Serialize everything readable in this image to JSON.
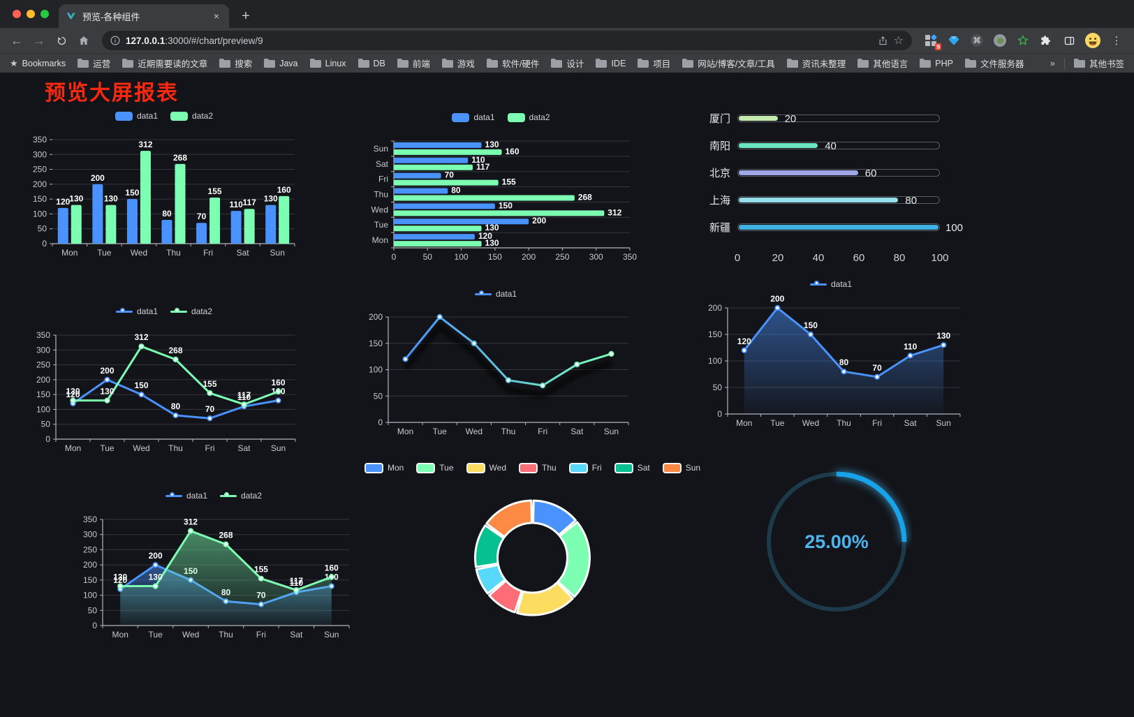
{
  "browser": {
    "tab_title": "预览-各种组件",
    "tab_close": "×",
    "new_tab": "+",
    "url_host": "127.0.0.1",
    "url_rest": ":3000/#/chart/preview/9",
    "bookmarks_label": "Bookmarks",
    "bookmark_folders": [
      "运营",
      "近期需要读的文章",
      "搜索",
      "Java",
      "Linux",
      "DB",
      "前端",
      "游戏",
      "软件/硬件",
      "设计",
      "IDE",
      "项目",
      "网站/博客/文章/工具",
      "资讯未整理",
      "其他语言",
      "PHP",
      "文件服务器"
    ],
    "bookmarks_overflow": "»",
    "other_bookmarks": "其他书签",
    "extension_badge": "9"
  },
  "page": {
    "title": "预览大屏报表"
  },
  "chart_data": [
    {
      "slot": "c1",
      "type": "bar",
      "orient": "vertical",
      "legend": true,
      "categories": [
        "Mon",
        "Tue",
        "Wed",
        "Thu",
        "Fri",
        "Sat",
        "Sun"
      ],
      "series": [
        {
          "name": "data1",
          "color": "#4992ff",
          "values": [
            120,
            200,
            150,
            80,
            70,
            110,
            130
          ]
        },
        {
          "name": "data2",
          "color": "#7cffb2",
          "values": [
            130,
            130,
            312,
            268,
            155,
            117,
            160
          ]
        }
      ],
      "ylim": [
        0,
        350
      ],
      "ytick": 50
    },
    {
      "slot": "c2",
      "type": "bar",
      "orient": "horizontal",
      "legend": true,
      "categories": [
        "Mon",
        "Tue",
        "Wed",
        "Thu",
        "Fri",
        "Sat",
        "Sun"
      ],
      "series": [
        {
          "name": "data1",
          "color": "#4992ff",
          "values": [
            120,
            200,
            150,
            80,
            70,
            110,
            130
          ]
        },
        {
          "name": "data2",
          "color": "#7cffb2",
          "values": [
            130,
            130,
            312,
            268,
            155,
            117,
            160
          ]
        }
      ],
      "xlim": [
        0,
        350
      ],
      "xtick": 50
    },
    {
      "slot": "c3",
      "type": "progress",
      "max": 100,
      "items": [
        {
          "label": "厦门",
          "value": 20,
          "color": "#c4ebad"
        },
        {
          "label": "南阳",
          "value": 40,
          "color": "#6be6c1"
        },
        {
          "label": "北京",
          "value": 60,
          "color": "#a0a7e6"
        },
        {
          "label": "上海",
          "value": 80,
          "color": "#96dee8"
        },
        {
          "label": "新疆",
          "value": 100,
          "color": "#3fb1e3"
        }
      ],
      "ticks": [
        0,
        20,
        40,
        60,
        80,
        100
      ]
    },
    {
      "slot": "c4",
      "type": "line",
      "legend": true,
      "categories": [
        "Mon",
        "Tue",
        "Wed",
        "Thu",
        "Fri",
        "Sat",
        "Sun"
      ],
      "series": [
        {
          "name": "data1",
          "color": "#4992ff",
          "values": [
            120,
            200,
            150,
            80,
            70,
            110,
            130
          ],
          "labels": true
        },
        {
          "name": "data2",
          "color": "#7cffb2",
          "values": [
            130,
            130,
            312,
            268,
            155,
            117,
            160
          ],
          "labels": true
        }
      ],
      "ylim": [
        0,
        350
      ],
      "ytick": 50
    },
    {
      "slot": "c5",
      "type": "line",
      "legend": true,
      "shadow": true,
      "gradient_line": [
        "#4992ff",
        "#7cffb2"
      ],
      "categories": [
        "Mon",
        "Tue",
        "Wed",
        "Thu",
        "Fri",
        "Sat",
        "Sun"
      ],
      "series": [
        {
          "name": "data1",
          "color": "#4992ff",
          "values": [
            120,
            200,
            150,
            80,
            70,
            110,
            130
          ],
          "labels": false
        }
      ],
      "ylim": [
        0,
        200
      ],
      "ytick": 50
    },
    {
      "slot": "c6",
      "type": "line",
      "legend": true,
      "categories": [
        "Mon",
        "Tue",
        "Wed",
        "Thu",
        "Fri",
        "Sat",
        "Sun"
      ],
      "series": [
        {
          "name": "data1",
          "color": "#4992ff",
          "values": [
            120,
            200,
            150,
            80,
            70,
            110,
            130
          ],
          "labels": true,
          "area": true
        }
      ],
      "ylim": [
        0,
        200
      ],
      "ytick": 50
    },
    {
      "slot": "c7",
      "type": "line",
      "legend": true,
      "categories": [
        "Mon",
        "Tue",
        "Wed",
        "Thu",
        "Fri",
        "Sat",
        "Sun"
      ],
      "series": [
        {
          "name": "data1",
          "color": "#4992ff",
          "values": [
            120,
            200,
            150,
            80,
            70,
            110,
            130
          ],
          "labels": true,
          "area": true
        },
        {
          "name": "data2",
          "color": "#7cffb2",
          "values": [
            130,
            130,
            312,
            268,
            155,
            117,
            160
          ],
          "labels": true,
          "area": true
        }
      ],
      "ylim": [
        0,
        350
      ],
      "ytick": 50
    },
    {
      "slot": "c8",
      "type": "pie",
      "legend": true,
      "inner_radius": 50,
      "outer_radius": 82,
      "items": [
        {
          "label": "Mon",
          "value": 120,
          "color": "#4992ff"
        },
        {
          "label": "Tue",
          "value": 200,
          "color": "#7cffb2"
        },
        {
          "label": "Wed",
          "value": 150,
          "color": "#fddd60"
        },
        {
          "label": "Thu",
          "value": 80,
          "color": "#ff6e76"
        },
        {
          "label": "Fri",
          "value": 70,
          "color": "#58d9f9"
        },
        {
          "label": "Sat",
          "value": 110,
          "color": "#05c091"
        },
        {
          "label": "Sun",
          "value": 130,
          "color": "#ff8a45"
        }
      ]
    },
    {
      "slot": "c9",
      "type": "gauge",
      "value": 25,
      "label": "25.00%",
      "color": "#18a2e8",
      "track_color": "#1c3a49"
    }
  ]
}
